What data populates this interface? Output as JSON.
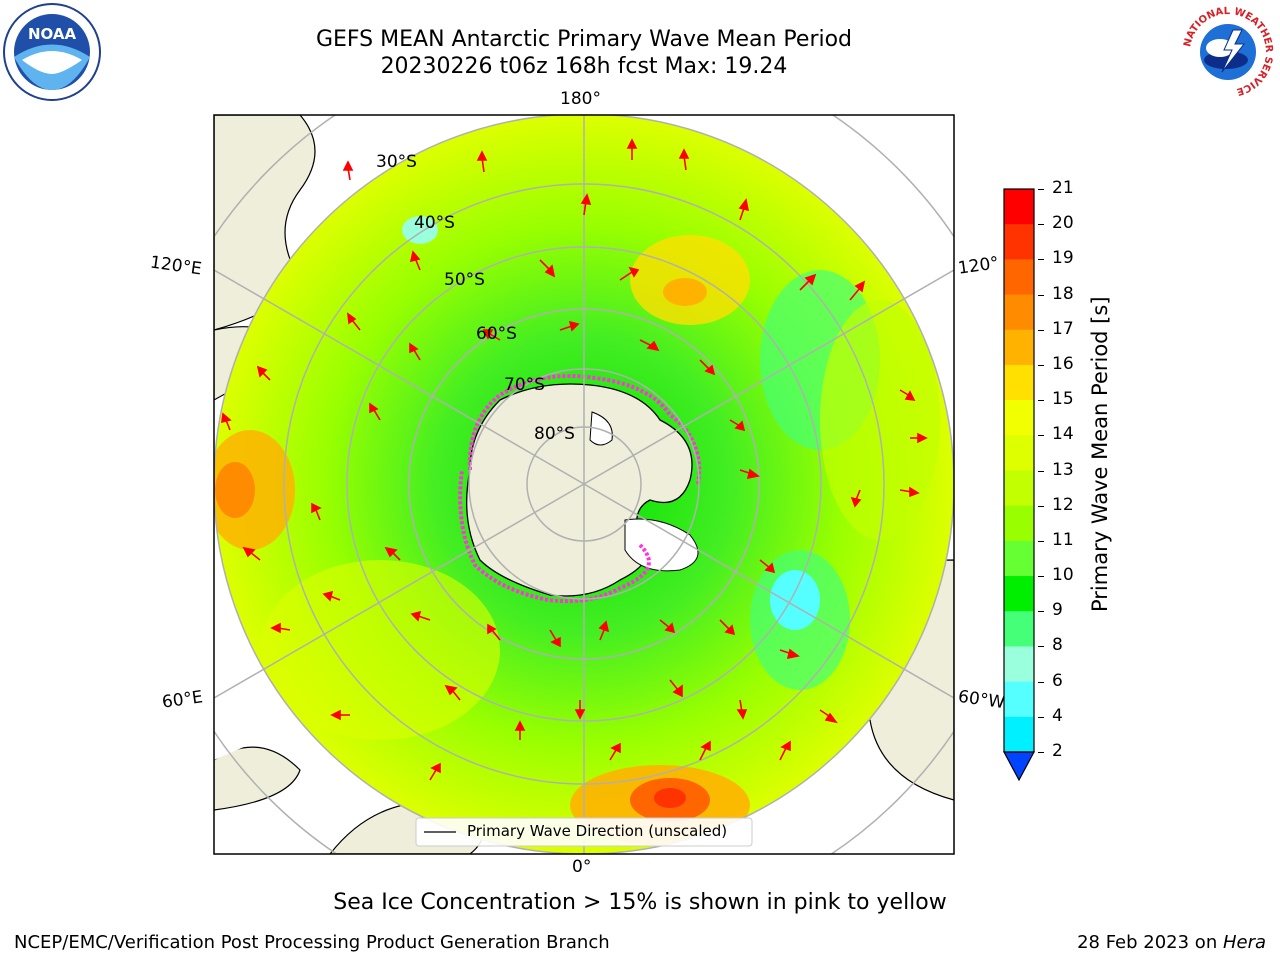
{
  "header": {
    "title_line1": "GEFS MEAN Antarctic Primary Wave Mean Period",
    "title_line2": "20230226 t06z 168h fcst   Max: 19.24"
  },
  "logos": {
    "left": "noara-logo",
    "right": "national-weather-service-logo",
    "noaa_text": "NOAA",
    "nws_ring_text": "NATIONAL WEATHER SERVICE"
  },
  "map": {
    "projection": "south-polar-stereographic",
    "longitude_labels": {
      "top": "180°",
      "bottom": "0°",
      "left_upper": "120°E",
      "left_lower": "60°E",
      "right_upper": "120°",
      "right_lower": "60°W"
    },
    "latitude_labels": [
      "30°S",
      "40°S",
      "50°S",
      "60°S",
      "70°S",
      "80°S"
    ],
    "legend_label": "Primary Wave Direction (unscaled)"
  },
  "colorbar": {
    "title": "Primary Wave Mean Period [s]",
    "ticks": [
      "21",
      "20",
      "19",
      "18",
      "17",
      "16",
      "15",
      "14",
      "13",
      "12",
      "11",
      "10",
      "9",
      "8",
      "6",
      "4",
      "2"
    ],
    "colors": [
      "#ff0000",
      "#ff3300",
      "#ff6600",
      "#ff8c00",
      "#ffb300",
      "#ffe000",
      "#f2ff00",
      "#ddff00",
      "#c2ff00",
      "#99ff00",
      "#66ff33",
      "#00ee00",
      "#44ff77",
      "#99ffdd",
      "#55ffff",
      "#00f0ff",
      "#0099ff",
      "#0055ff"
    ]
  },
  "annotation": "Sea Ice Concentration > 15% is shown in pink to yellow",
  "footer": {
    "left": "NCEP/EMC/Verification Post Processing Product Generation Branch",
    "right_date": "28 Feb 2023 on ",
    "right_host": "Hera"
  }
}
